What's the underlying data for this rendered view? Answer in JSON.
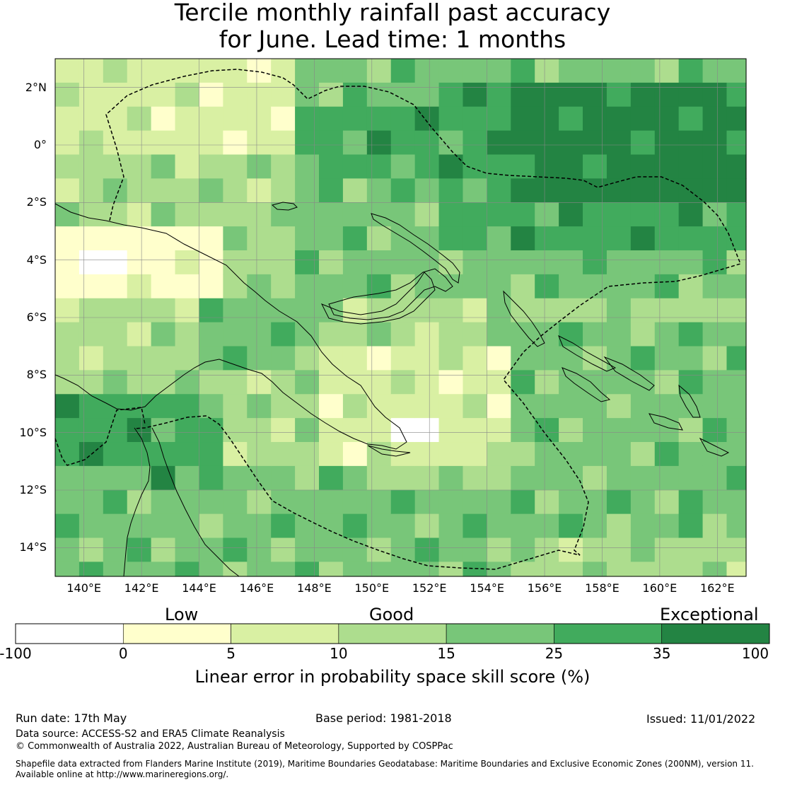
{
  "title": {
    "line1": "Tercile monthly rainfall past accuracy",
    "line2": "for June. Lead time: 1 months"
  },
  "map": {
    "lat_labels": [
      "2°N",
      "0°",
      "2°S",
      "4°S",
      "6°S",
      "8°S",
      "10°S",
      "12°S",
      "14°S"
    ],
    "lon_labels": [
      "140°E",
      "142°E",
      "144°E",
      "146°E",
      "148°E",
      "150°E",
      "152°E",
      "154°E",
      "156°E",
      "158°E",
      "160°E",
      "162°E"
    ],
    "lon_range": [
      139,
      163
    ],
    "lat_range": [
      -15,
      3
    ],
    "colors": {
      "c0": "#ffffff",
      "c1": "#ffffcc",
      "c2": "#d9f0a3",
      "c3": "#addd8e",
      "c4": "#78c679",
      "c5": "#41ab5d",
      "c6": "#238443"
    }
  },
  "colorbar": {
    "category_labels": {
      "low": "Low",
      "good": "Good",
      "exceptional": "Exceptional"
    },
    "ticks": [
      "-100",
      "0",
      "5",
      "10",
      "15",
      "25",
      "35",
      "100"
    ],
    "label": "Linear error in probability space skill score (%)"
  },
  "footer": {
    "run_date": "Run date: 17th May",
    "base_period": "Base period: 1981-2018",
    "issued": "Issued: 11/01/2022",
    "data_source": "Data source: ACCESS-S2 and ERA5 Climate Reanalysis",
    "copyright": "© Commonwealth of Australia 2022, Australian Bureau of Meteorology, Supported by COSPPac",
    "shapefile_line1": "Shapefile data extracted from Flanders Marine Institute (2019), Maritime Boundaries Geodatabase: Maritime Boundaries and Exclusive Economic Zones (200NM), version 11.",
    "shapefile_line2": "Available online at http://www.marineregions.org/."
  }
}
